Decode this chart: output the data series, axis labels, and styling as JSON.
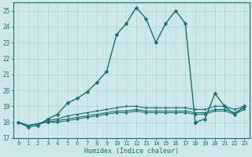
{
  "xlabel": "Humidex (Indice chaleur)",
  "xlim_min": -0.5,
  "xlim_max": 23.5,
  "ylim_min": 17,
  "ylim_max": 25.5,
  "yticks": [
    17,
    18,
    19,
    20,
    21,
    22,
    23,
    24,
    25
  ],
  "xticks": [
    0,
    1,
    2,
    3,
    4,
    5,
    6,
    7,
    8,
    9,
    10,
    11,
    12,
    13,
    14,
    15,
    16,
    17,
    18,
    19,
    20,
    21,
    22,
    23
  ],
  "bg_color": "#cce8e8",
  "line_color": "#1a7070",
  "grid_color": "#b8d8d8",
  "main_x": [
    0,
    1,
    2,
    3,
    4,
    5,
    6,
    7,
    8,
    9,
    10,
    11,
    12,
    13,
    14,
    15,
    16,
    17,
    18,
    18.05,
    19,
    20,
    21,
    22,
    23
  ],
  "main_y": [
    18.0,
    17.7,
    17.8,
    18.2,
    18.5,
    19.2,
    19.5,
    19.9,
    20.5,
    21.2,
    23.5,
    24.2,
    25.2,
    24.5,
    23.0,
    24.2,
    25.0,
    24.2,
    18.0,
    18.0,
    18.2,
    19.8,
    19.0,
    18.5,
    19.0
  ],
  "flat1_x": [
    0,
    1,
    2,
    3,
    4,
    5,
    6,
    7,
    8,
    9,
    10,
    11,
    12,
    13,
    14,
    15,
    16,
    17,
    18,
    19,
    20,
    21,
    22,
    23
  ],
  "flat1_y": [
    18.0,
    17.8,
    17.9,
    18.1,
    18.2,
    18.4,
    18.5,
    18.6,
    18.7,
    18.8,
    18.9,
    19.0,
    19.0,
    18.9,
    18.9,
    18.9,
    18.9,
    18.9,
    18.8,
    18.8,
    19.0,
    19.0,
    18.8,
    19.0
  ],
  "flat2_x": [
    0,
    1,
    2,
    3,
    4,
    5,
    6,
    7,
    8,
    9,
    10,
    11,
    12,
    13,
    14,
    15,
    16,
    17,
    18,
    19,
    20,
    21,
    22,
    23
  ],
  "flat2_y": [
    18.0,
    17.8,
    17.9,
    18.0,
    18.1,
    18.2,
    18.3,
    18.4,
    18.5,
    18.6,
    18.7,
    18.7,
    18.8,
    18.7,
    18.7,
    18.7,
    18.7,
    18.7,
    18.6,
    18.6,
    18.8,
    18.8,
    18.6,
    18.9
  ],
  "flat3_x": [
    0,
    1,
    2,
    3,
    4,
    5,
    6,
    7,
    8,
    9,
    10,
    11,
    12,
    13,
    14,
    15,
    16,
    17,
    18,
    19,
    20,
    21,
    22,
    23
  ],
  "flat3_y": [
    18.0,
    17.8,
    17.9,
    18.0,
    18.0,
    18.1,
    18.2,
    18.3,
    18.4,
    18.5,
    18.6,
    18.6,
    18.7,
    18.6,
    18.6,
    18.6,
    18.6,
    18.6,
    18.5,
    18.5,
    18.7,
    18.7,
    18.5,
    18.8
  ],
  "xlabel_fontsize": 6,
  "tick_fontsize": 5,
  "linewidth_main": 1.0,
  "linewidth_flat": 0.8,
  "marker_size_main": 2.5,
  "marker_size_flat": 1.5
}
